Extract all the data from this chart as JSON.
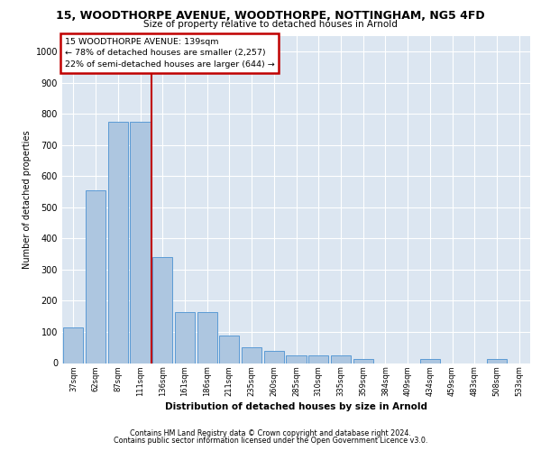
{
  "title_main": "15, WOODTHORPE AVENUE, WOODTHORPE, NOTTINGHAM, NG5 4FD",
  "title_sub": "Size of property relative to detached houses in Arnold",
  "xlabel": "Distribution of detached houses by size in Arnold",
  "ylabel": "Number of detached properties",
  "categories": [
    "37sqm",
    "62sqm",
    "87sqm",
    "111sqm",
    "136sqm",
    "161sqm",
    "186sqm",
    "211sqm",
    "235sqm",
    "260sqm",
    "285sqm",
    "310sqm",
    "335sqm",
    "359sqm",
    "384sqm",
    "409sqm",
    "434sqm",
    "459sqm",
    "483sqm",
    "508sqm",
    "533sqm"
  ],
  "values": [
    113,
    556,
    775,
    775,
    340,
    163,
    163,
    88,
    50,
    38,
    25,
    25,
    25,
    13,
    0,
    0,
    13,
    0,
    0,
    13,
    0
  ],
  "bar_color": "#adc6e0",
  "bar_edge_color": "#5b9bd5",
  "vline_x": 3.5,
  "vline_color": "#c00000",
  "annotation_line1": "15 WOODTHORPE AVENUE: 139sqm",
  "annotation_line2": "← 78% of detached houses are smaller (2,257)",
  "annotation_line3": "22% of semi-detached houses are larger (644) →",
  "ann_box_edge_color": "#c00000",
  "ylim": [
    0,
    1050
  ],
  "yticks": [
    0,
    100,
    200,
    300,
    400,
    500,
    600,
    700,
    800,
    900,
    1000
  ],
  "bg_color": "#dce6f1",
  "footer1": "Contains HM Land Registry data © Crown copyright and database right 2024.",
  "footer2": "Contains public sector information licensed under the Open Government Licence v3.0."
}
